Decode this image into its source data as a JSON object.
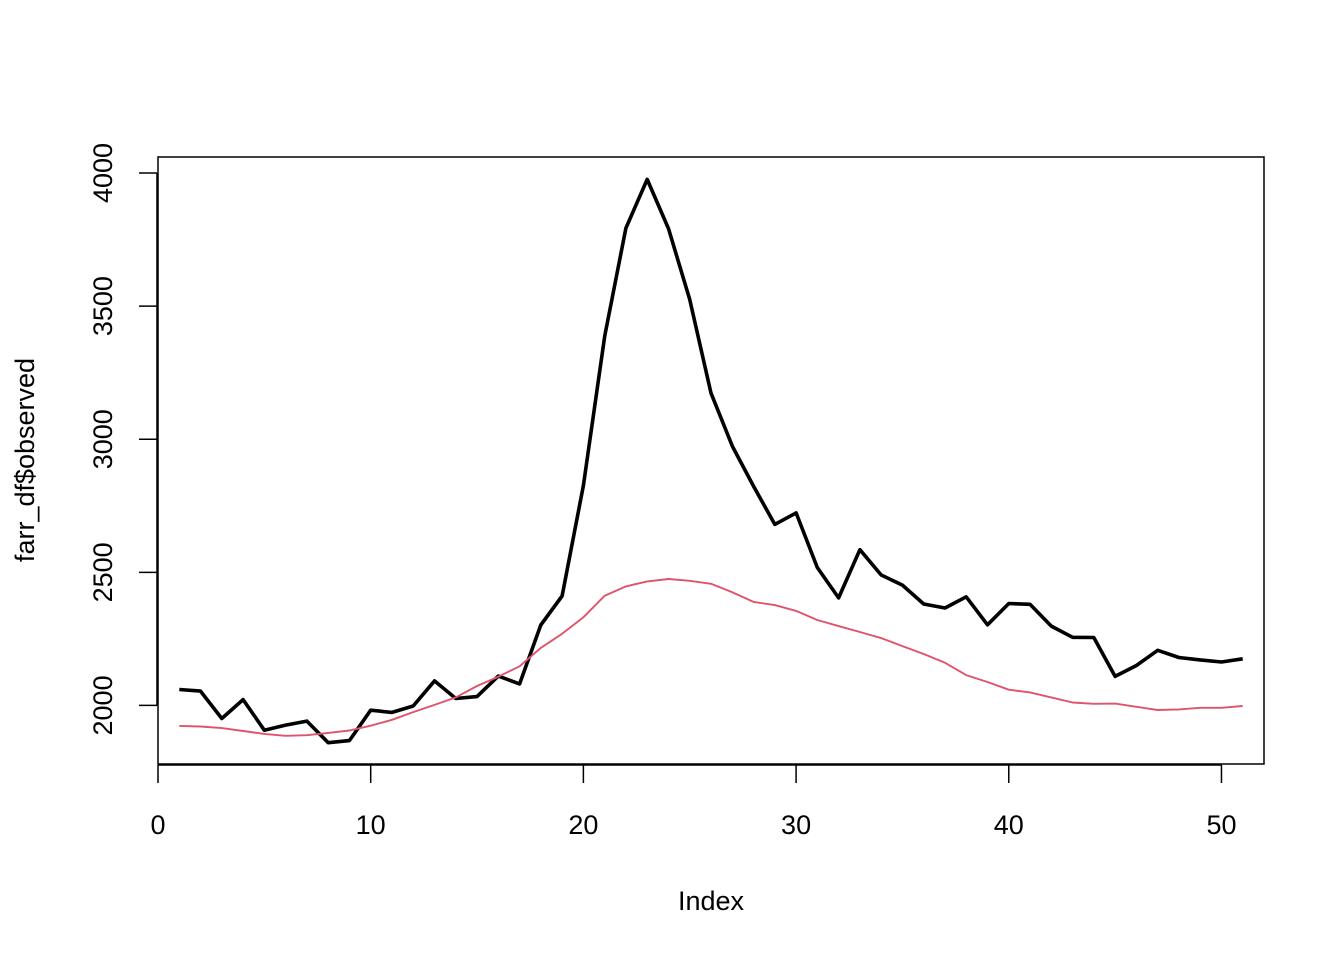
{
  "chart_data": {
    "type": "line",
    "xlabel": "Index",
    "ylabel": "farr_df$observed",
    "xlim": [
      0,
      52
    ],
    "ylim": [
      1780,
      4060
    ],
    "x_ticks": [
      0,
      10,
      20,
      30,
      40,
      50
    ],
    "y_ticks": [
      2000,
      2500,
      3000,
      3500,
      4000
    ],
    "grid": false,
    "x": [
      1,
      2,
      3,
      4,
      5,
      6,
      7,
      8,
      9,
      10,
      11,
      12,
      13,
      14,
      15,
      16,
      17,
      18,
      19,
      20,
      21,
      22,
      23,
      24,
      25,
      26,
      27,
      28,
      29,
      30,
      31,
      32,
      33,
      34,
      35,
      36,
      37,
      38,
      39,
      40,
      41,
      42,
      43,
      44,
      45,
      46,
      47,
      48,
      49,
      50,
      51
    ],
    "series": [
      {
        "color": "#000000",
        "values": [
          2060,
          2054,
          1951,
          2022,
          1907,
          1926,
          1941,
          1860,
          1868,
          1982,
          1974,
          1998,
          2092,
          2026,
          2033,
          2110,
          2081,
          2302,
          2411,
          2826,
          3387,
          3793,
          3976,
          3791,
          3525,
          3173,
          2974,
          2824,
          2680,
          2723,
          2518,
          2404,
          2585,
          2490,
          2452,
          2381,
          2366,
          2408,
          2303,
          2383,
          2380,
          2298,
          2256,
          2255,
          2109,
          2150,
          2207,
          2180,
          2171,
          2163,
          2175
        ]
      },
      {
        "color": "#df536b",
        "values": [
          1923,
          1921,
          1915,
          1904,
          1893,
          1886,
          1888,
          1897,
          1906,
          1924,
          1946,
          1975,
          2002,
          2030,
          2073,
          2108,
          2147,
          2216,
          2269,
          2331,
          2412,
          2447,
          2466,
          2475,
          2468,
          2457,
          2425,
          2389,
          2377,
          2355,
          2321,
          2298,
          2276,
          2253,
          2223,
          2193,
          2160,
          2114,
          2088,
          2059,
          2049,
          2030,
          2011,
          2006,
          2007,
          1995,
          1983,
          1985,
          1991,
          1991,
          1998
        ]
      }
    ]
  }
}
